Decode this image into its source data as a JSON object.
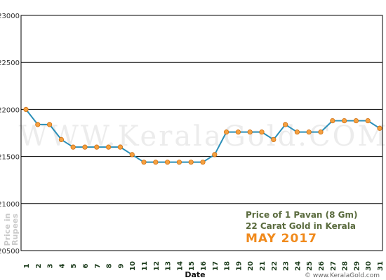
{
  "chart_data": {
    "type": "line",
    "xlabel": "Date",
    "ylabel": "Price in Rupees",
    "x": [
      1,
      2,
      3,
      4,
      5,
      6,
      7,
      8,
      9,
      10,
      11,
      12,
      13,
      14,
      15,
      16,
      17,
      18,
      19,
      20,
      21,
      22,
      23,
      24,
      25,
      26,
      27,
      28,
      29,
      30,
      31
    ],
    "ylim": [
      20500,
      23000
    ],
    "yticks": [
      20500,
      21000,
      21500,
      22000,
      22500,
      23000
    ],
    "grid": true,
    "series": [
      {
        "values": [
          22000,
          21840,
          21840,
          21680,
          21600,
          21600,
          21600,
          21600,
          21600,
          21520,
          21440,
          21440,
          21440,
          21440,
          21440,
          21440,
          21520,
          21760,
          21760,
          21760,
          21760,
          21680,
          21840,
          21760,
          21760,
          21760,
          21880,
          21880,
          21880,
          21880,
          21800
        ]
      }
    ],
    "annotations": {
      "line1": "Price of 1 Pavan (8 Gm)",
      "line2": "22 Carat Gold in Kerala",
      "line3": "MAY 2017"
    },
    "watermark": "WWW.KeralaGold.COM",
    "credit": "© www.KeralaGold.com",
    "colors": {
      "line": "#2b8fb8",
      "marker": "#f5a040",
      "marker_edge": "#d07010",
      "title": "#5a6b3e",
      "month": "#f08a1c"
    }
  }
}
